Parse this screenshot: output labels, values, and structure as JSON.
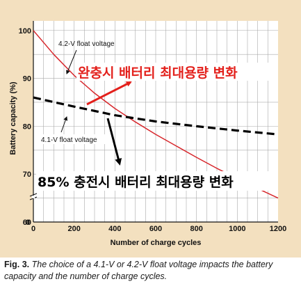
{
  "chart_data": {
    "type": "line",
    "xlabel": "Number of charge cycles",
    "ylabel": "Battery capacity (%)",
    "xlim": [
      0,
      1200
    ],
    "ylim": [
      60,
      102
    ],
    "x_ticks": [
      0,
      200,
      400,
      600,
      800,
      1000,
      1200
    ],
    "y_ticks": [
      60,
      70,
      80,
      90,
      100
    ],
    "grid": true,
    "series": [
      {
        "name": "4.2-V float voltage",
        "color": "#d7262b",
        "style": "solid",
        "x": [
          0,
          100,
          200,
          300,
          400,
          500,
          600,
          700,
          800,
          900,
          1000,
          1100,
          1200
        ],
        "y": [
          100,
          95,
          90.6,
          86.9,
          83.7,
          80.9,
          78.3,
          75.9,
          73.5,
          71.2,
          69.1,
          67,
          65
        ]
      },
      {
        "name": "4.1-V float voltage",
        "color": "#000000",
        "style": "dashed",
        "x": [
          0,
          200,
          400,
          600,
          800,
          1000,
          1200
        ],
        "y": [
          86,
          84.1,
          82.3,
          81,
          80,
          79.1,
          78.3
        ]
      }
    ],
    "annotations": [
      {
        "text": "4.2-V float voltage",
        "target_series": 0
      },
      {
        "text": "4.1-V float voltage",
        "target_series": 1
      }
    ]
  },
  "overlay_text": {
    "full_charge": "완충시 배터리 최대용량 변화",
    "partial_charge": "85% 충전시 배터리 최대용량 변화"
  },
  "caption": {
    "fig_num": "Fig. 3.",
    "text": "The choice of a 4.1-V or 4.2-V float voltage impacts the battery capacity and the number of charge cycles."
  }
}
